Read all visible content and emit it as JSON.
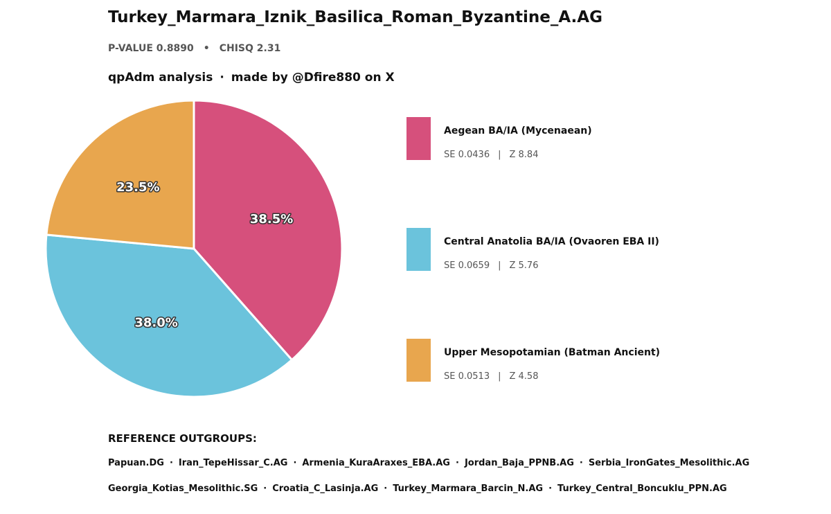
{
  "header": {
    "title": "Turkey_Marmara_Iznik_Basilica_Roman_Byzantine_A.AG",
    "pvalue": "P-VALUE 0.8890",
    "stat_separator": "•",
    "chisq": "CHISQ 2.31",
    "subtitle_left": "qpAdm analysis",
    "subtitle_separator": "·",
    "subtitle_right": "made by @Dfire880 on X"
  },
  "chart_data": {
    "type": "pie",
    "categories": [
      "Aegean BA/IA (Mycenaean)",
      "Central Anatolia BA/IA (Ovaoren EBA II)",
      "Upper Mesopotamian (Batman Ancient)"
    ],
    "values": [
      38.5,
      38.0,
      23.5
    ],
    "value_labels": [
      "38.5%",
      "38.0%",
      "23.5%"
    ],
    "colors": [
      "#d6507c",
      "#6bc3dc",
      "#e8a64e"
    ],
    "start_angle_deg": 90,
    "direction": "clockwise",
    "legend_placement": "right"
  },
  "legend": {
    "separator": "|",
    "items": [
      {
        "label": "Aegean BA/IA (Mycenaean)",
        "se": "SE 0.0436",
        "z": "Z 8.84"
      },
      {
        "label": "Central Anatolia BA/IA (Ovaoren EBA II)",
        "se": "SE 0.0659",
        "z": "Z 5.76"
      },
      {
        "label": "Upper Mesopotamian (Batman Ancient)",
        "se": "SE 0.0513",
        "z": "Z 4.58"
      }
    ]
  },
  "references": {
    "heading": "REFERENCE OUTGROUPS:",
    "separator": "·",
    "line1": [
      "Papuan.DG",
      "Iran_TepeHissar_C.AG",
      "Armenia_KuraAraxes_EBA.AG",
      "Jordan_Baja_PPNB.AG",
      "Serbia_IronGates_Mesolithic.AG"
    ],
    "line2": [
      "Georgia_Kotias_Mesolithic.SG",
      "Croatia_C_Lasinja.AG",
      "Turkey_Marmara_Barcin_N.AG",
      "Turkey_Central_Boncuklu_PPN.AG"
    ]
  }
}
